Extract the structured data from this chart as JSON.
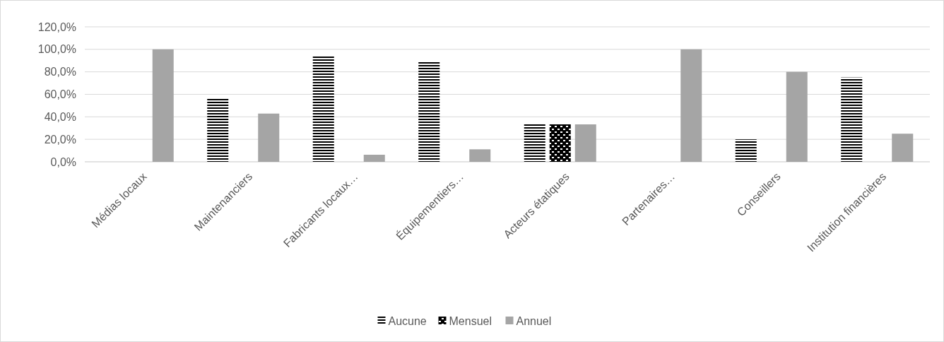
{
  "chart_data": {
    "type": "bar",
    "categories": [
      "Médias locaux",
      "Maintenanciers",
      "Fabricants locaux…",
      "Équipementiers…",
      "Acteurs étatiques",
      "Partenaires…",
      "Conseillers",
      "Institution financières"
    ],
    "series": [
      {
        "name": "Aucune",
        "color": "#000000",
        "values": [
          0,
          57.1,
          93.8,
          88.9,
          33.3,
          0,
          20,
          75
        ]
      },
      {
        "name": "Mensuel",
        "color": "#000000",
        "values": [
          0,
          0,
          0,
          0,
          33.3,
          0,
          0,
          0
        ]
      },
      {
        "name": "Annuel",
        "color": "#a5a5a5",
        "values": [
          100,
          42.9,
          6.3,
          11.1,
          33.3,
          100,
          80,
          25
        ]
      }
    ],
    "ylim": [
      0,
      120
    ],
    "yticks": [
      {
        "value": 0,
        "label": "0,0%"
      },
      {
        "value": 20,
        "label": "20,0%"
      },
      {
        "value": 40,
        "label": "40,0%"
      },
      {
        "value": 60,
        "label": "60,0%"
      },
      {
        "value": 80,
        "label": "80,0%"
      },
      {
        "value": 100,
        "label": "100,0%"
      },
      {
        "value": 120,
        "label": "120,0%"
      }
    ],
    "grid": "y",
    "legend": "bottom"
  }
}
